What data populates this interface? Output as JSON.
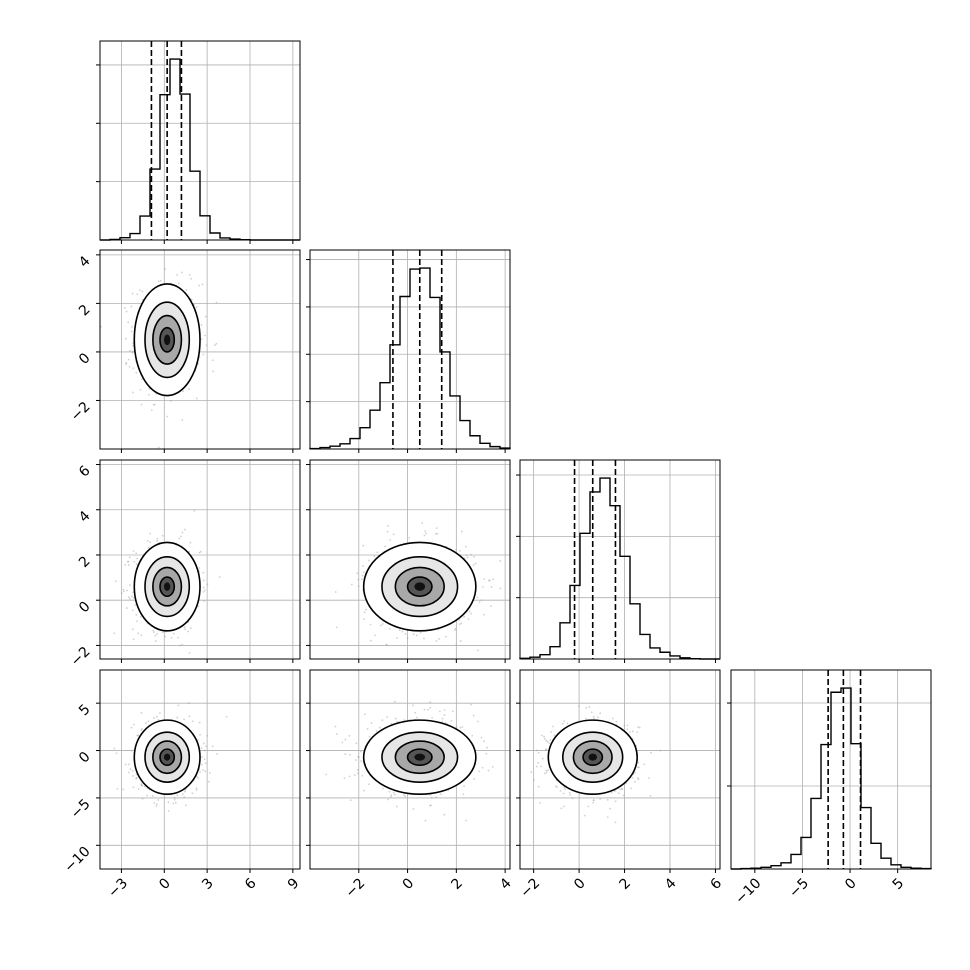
{
  "chart_data": {
    "type": "corner",
    "description_of_layout": "4x4 lower-triangular grid: 1-D histograms on diagonal, 2-D density + contours below",
    "grid": true,
    "parameters": [
      {
        "index": 0,
        "mean": 0.2,
        "sd": 1.0,
        "quantiles": [
          -0.9,
          0.2,
          1.2
        ],
        "range": [
          -4.5,
          9.5
        ],
        "ticks": [
          -3,
          0,
          3,
          6,
          9
        ],
        "tick_labels": [
          "−3",
          "0",
          "3",
          "6",
          "9"
        ]
      },
      {
        "index": 1,
        "mean": 0.5,
        "sd": 1.0,
        "quantiles": [
          -0.6,
          0.5,
          1.4
        ],
        "range": [
          -4.0,
          4.2
        ],
        "ticks": [
          -2,
          0,
          2,
          4
        ],
        "tick_labels": [
          "−2",
          "0",
          "2",
          "4"
        ]
      },
      {
        "index": 2,
        "mean": 0.6,
        "sd": 0.85,
        "quantiles": [
          -0.2,
          0.6,
          1.6
        ],
        "range": [
          -2.6,
          6.2
        ],
        "ticks": [
          -2,
          0,
          2,
          4,
          6
        ],
        "tick_labels": [
          "−2",
          "0",
          "2",
          "4",
          "6"
        ]
      },
      {
        "index": 3,
        "mean": -0.7,
        "sd": 1.7,
        "quantiles": [
          -2.3,
          -0.7,
          1.1
        ],
        "range": [
          -12.5,
          8.5
        ],
        "ticks": [
          -10,
          -5,
          0,
          5
        ],
        "tick_labels": [
          "−10",
          "−5",
          "0",
          "5"
        ]
      }
    ],
    "y_tick_labels": {
      "row1": [
        "−2",
        "0",
        "2",
        "4"
      ],
      "row2": [
        "−2",
        "0",
        "2",
        "4",
        "6"
      ],
      "row3": [
        "−10",
        "−5",
        "0",
        "5"
      ]
    },
    "histograms": [
      {
        "param": 0,
        "bin_edges": [
          -4.5,
          9.5
        ],
        "counts": [
          0,
          2,
          8,
          22,
          82,
          243,
          498,
          620,
          500,
          236,
          83,
          24,
          7,
          3,
          1,
          0,
          0,
          0,
          0,
          0
        ]
      },
      {
        "param": 1,
        "bin_edges": [
          -4.0,
          4.2
        ],
        "counts": [
          1,
          3,
          6,
          11,
          22,
          45,
          82,
          140,
          220,
          322,
          380,
          382,
          320,
          205,
          112,
          60,
          28,
          12,
          5,
          2
        ]
      },
      {
        "param": 2,
        "bin_edges": [
          -2.6,
          6.2
        ],
        "counts": [
          2,
          6,
          14,
          40,
          118,
          240,
          410,
          545,
          590,
          500,
          335,
          180,
          80,
          36,
          22,
          10,
          4,
          1,
          0,
          0
        ]
      },
      {
        "param": 3,
        "bin_edges": [
          -12.5,
          8.5
        ],
        "counts": [
          0,
          1,
          2,
          4,
          8,
          15,
          35,
          76,
          170,
          300,
          426,
          436,
          302,
          148,
          62,
          26,
          10,
          4,
          2,
          1
        ]
      }
    ],
    "panels_2d": [
      {
        "x": 0,
        "y": 1,
        "correlation": 0.0
      },
      {
        "x": 0,
        "y": 2,
        "correlation": 0.0
      },
      {
        "x": 1,
        "y": 2,
        "correlation": 0.0
      },
      {
        "x": 0,
        "y": 3,
        "correlation": 0.0
      },
      {
        "x": 1,
        "y": 3,
        "correlation": 0.0
      },
      {
        "x": 2,
        "y": 3,
        "correlation": 0.0
      }
    ],
    "contour_levels_sigma": [
      0.5,
      1.0,
      1.5,
      2.0
    ]
  }
}
